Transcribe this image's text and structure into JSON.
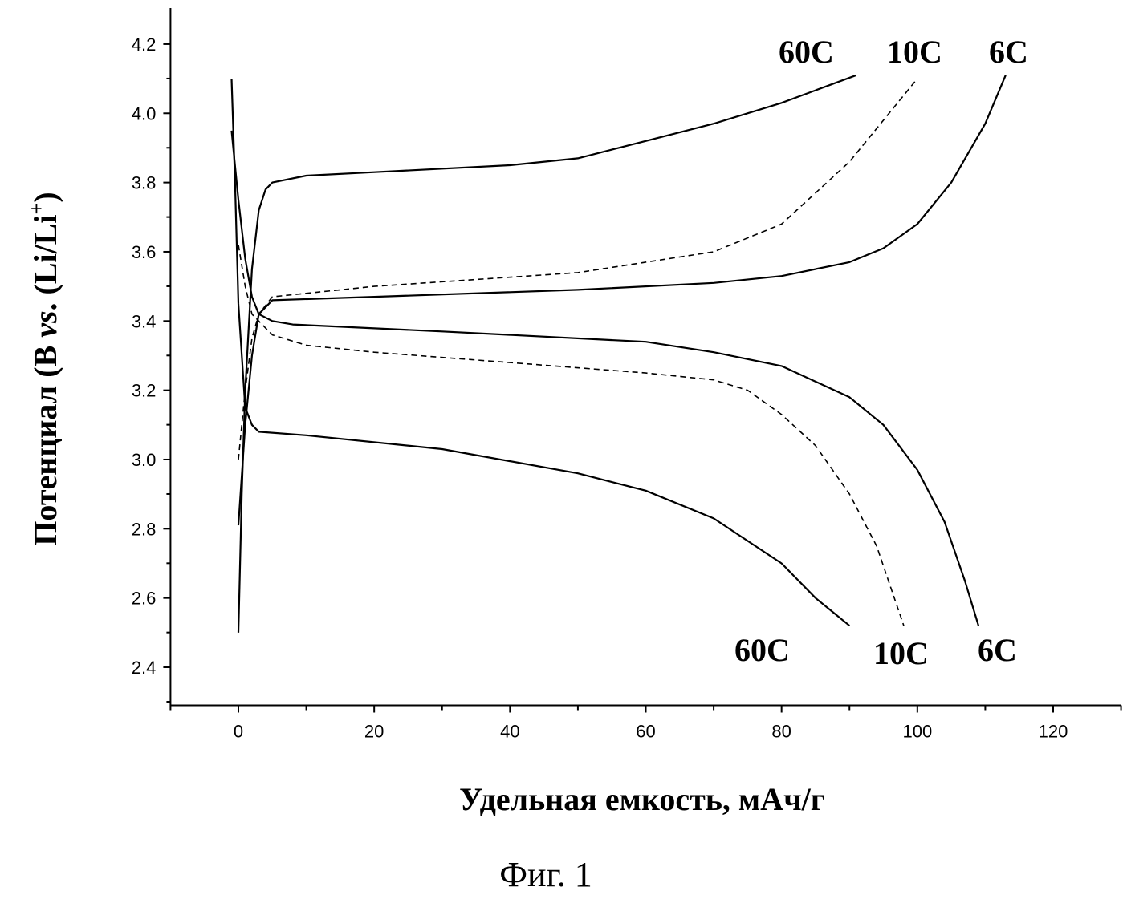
{
  "chart_data": {
    "type": "line",
    "title": "",
    "xlabel": "Удельная емкость, мАч/г",
    "ylabel_parts": [
      "Потенциал (B ",
      "vs",
      ". (Li/Li",
      ")",
      "+"
    ],
    "xlim": [
      -10,
      130
    ],
    "ylim": [
      2.29,
      4.3
    ],
    "xticks": [
      0,
      20,
      40,
      60,
      80,
      100,
      120
    ],
    "yticks": [
      2.4,
      2.6,
      2.8,
      3.0,
      3.2,
      3.4,
      3.6,
      3.8,
      4.0,
      4.2
    ],
    "ytick_labels": [
      "2.4",
      "2.6",
      "2.8",
      "3.0",
      "3.2",
      "3.4",
      "3.6",
      "3.8",
      "4.0",
      "4.2"
    ],
    "series": [
      {
        "name": "60C charge",
        "style": "solid",
        "x": [
          0,
          0.5,
          1,
          2,
          3,
          4,
          5,
          10,
          20,
          40,
          50,
          60,
          70,
          80,
          91
        ],
        "y": [
          2.5,
          2.9,
          3.2,
          3.55,
          3.72,
          3.78,
          3.8,
          3.82,
          3.83,
          3.85,
          3.87,
          3.92,
          3.97,
          4.03,
          4.11
        ]
      },
      {
        "name": "60C discharge",
        "style": "solid",
        "x": [
          -1,
          -0.5,
          0,
          1,
          2,
          3,
          10,
          30,
          50,
          60,
          70,
          80,
          85,
          90
        ],
        "y": [
          4.1,
          3.8,
          3.45,
          3.15,
          3.1,
          3.08,
          3.07,
          3.03,
          2.96,
          2.91,
          2.83,
          2.7,
          2.6,
          2.52
        ]
      },
      {
        "name": "10C charge",
        "style": "dashed",
        "x": [
          0,
          1,
          2,
          3,
          5,
          20,
          50,
          70,
          80,
          90,
          100
        ],
        "y": [
          3.0,
          3.2,
          3.35,
          3.42,
          3.47,
          3.5,
          3.54,
          3.6,
          3.68,
          3.86,
          4.1
        ]
      },
      {
        "name": "10C discharge",
        "style": "dashed",
        "x": [
          0,
          1,
          2,
          5,
          10,
          20,
          40,
          60,
          70,
          75,
          80,
          85,
          90,
          94,
          98
        ],
        "y": [
          3.62,
          3.5,
          3.42,
          3.36,
          3.33,
          3.31,
          3.28,
          3.25,
          3.23,
          3.2,
          3.13,
          3.04,
          2.9,
          2.75,
          2.52
        ]
      },
      {
        "name": "6C charge",
        "style": "solid",
        "x": [
          0,
          1,
          2,
          3,
          5,
          20,
          50,
          70,
          80,
          90,
          95,
          100,
          105,
          110,
          113
        ],
        "y": [
          2.81,
          3.1,
          3.3,
          3.42,
          3.46,
          3.47,
          3.49,
          3.51,
          3.53,
          3.57,
          3.61,
          3.68,
          3.8,
          3.97,
          4.11
        ]
      },
      {
        "name": "6C discharge",
        "style": "solid",
        "x": [
          -1,
          0,
          1,
          2,
          3,
          5,
          8,
          30,
          60,
          70,
          80,
          90,
          95,
          100,
          104,
          107,
          109
        ],
        "y": [
          3.95,
          3.75,
          3.58,
          3.47,
          3.42,
          3.4,
          3.39,
          3.37,
          3.34,
          3.31,
          3.27,
          3.18,
          3.1,
          2.97,
          2.82,
          2.65,
          2.52
        ]
      }
    ],
    "annotations": {
      "top": [
        "60C",
        "10C",
        "6C"
      ],
      "bottom": [
        "60C",
        "10C",
        "6C"
      ]
    }
  },
  "caption": "Фиг. 1"
}
